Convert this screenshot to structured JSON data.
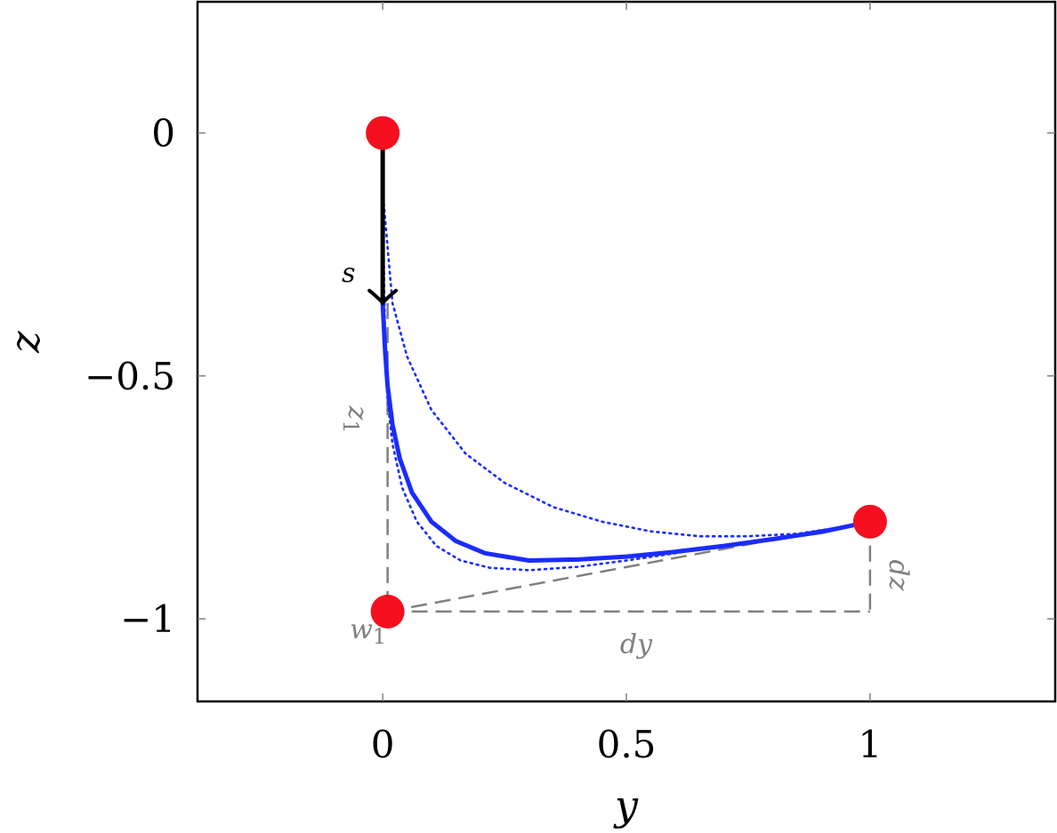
{
  "chart_data": {
    "type": "line",
    "title": "",
    "xlabel": "y",
    "ylabel": "z",
    "xlim": [
      -0.38,
      1.38
    ],
    "ylim": [
      -1.17,
      0.27
    ],
    "grid": false,
    "legend": "none",
    "x_ticks": [
      0,
      0.5,
      1
    ],
    "x_tick_labels": [
      "0",
      "0.5",
      "1"
    ],
    "y_ticks": [
      0,
      -0.5,
      -1
    ],
    "y_tick_labels": [
      "0",
      "−0.5",
      "−1"
    ],
    "colors": {
      "curve": "#1a2cff",
      "points": "#f50f1f",
      "arrow": "#000000",
      "guides": "#808080",
      "frame": "#000000"
    },
    "series": [
      {
        "style": "solid",
        "x": [
          0,
          0.005,
          0.01,
          0.02,
          0.035,
          0.06,
          0.1,
          0.15,
          0.21,
          0.3,
          0.4,
          0.5,
          0.6,
          0.7,
          0.8,
          0.9,
          1.0
        ],
        "y": [
          -0.35,
          -0.45,
          -0.52,
          -0.6,
          -0.67,
          -0.74,
          -0.8,
          -0.84,
          -0.865,
          -0.88,
          -0.878,
          -0.872,
          -0.862,
          -0.85,
          -0.836,
          -0.821,
          -0.8
        ]
      },
      {
        "style": "dotted",
        "x": [
          0,
          0.02,
          0.05,
          0.1,
          0.17,
          0.25,
          0.35,
          0.45,
          0.55,
          0.65,
          0.75,
          0.85,
          0.95,
          1.0
        ],
        "y": [
          -0.12,
          -0.35,
          -0.46,
          -0.57,
          -0.66,
          -0.72,
          -0.77,
          -0.8,
          -0.82,
          -0.83,
          -0.83,
          -0.825,
          -0.81,
          -0.8
        ]
      },
      {
        "style": "dotted",
        "x": [
          0,
          0.005,
          0.01,
          0.02,
          0.04,
          0.07,
          0.11,
          0.16,
          0.22,
          0.3,
          0.4,
          0.5,
          0.6,
          0.7,
          0.8,
          0.9,
          1.0
        ],
        "y": [
          -0.12,
          -0.45,
          -0.55,
          -0.64,
          -0.73,
          -0.8,
          -0.85,
          -0.88,
          -0.895,
          -0.9,
          -0.893,
          -0.88,
          -0.865,
          -0.85,
          -0.835,
          -0.818,
          -0.8
        ]
      }
    ],
    "points": [
      {
        "x": 0,
        "y": 0
      },
      {
        "x": 1,
        "y": -0.8
      },
      {
        "x": 0.01,
        "y": -0.985
      }
    ],
    "arrow": {
      "from": [
        0,
        0
      ],
      "to": [
        0,
        -0.35
      ],
      "label": "s"
    },
    "guides": [
      {
        "from": [
          0.01,
          -0.35
        ],
        "to": [
          0.01,
          -0.985
        ]
      },
      {
        "from": [
          0.01,
          -0.985
        ],
        "to": [
          1,
          -0.985
        ]
      },
      {
        "from": [
          1,
          -0.8
        ],
        "to": [
          1,
          -0.985
        ]
      },
      {
        "from": [
          0.01,
          -0.985
        ],
        "to": [
          1,
          -0.8
        ]
      }
    ],
    "annotations": [
      {
        "text": "w",
        "sub": "1",
        "x": -0.03,
        "y": -1.04
      },
      {
        "text": "dy",
        "x": 0.52,
        "y": -1.07
      },
      {
        "text": "z",
        "sub": "1",
        "x": -0.07,
        "y": -0.59,
        "rotate": 90
      },
      {
        "text": "dz",
        "x": 1.04,
        "y": -0.91,
        "rotate": 90
      }
    ]
  }
}
